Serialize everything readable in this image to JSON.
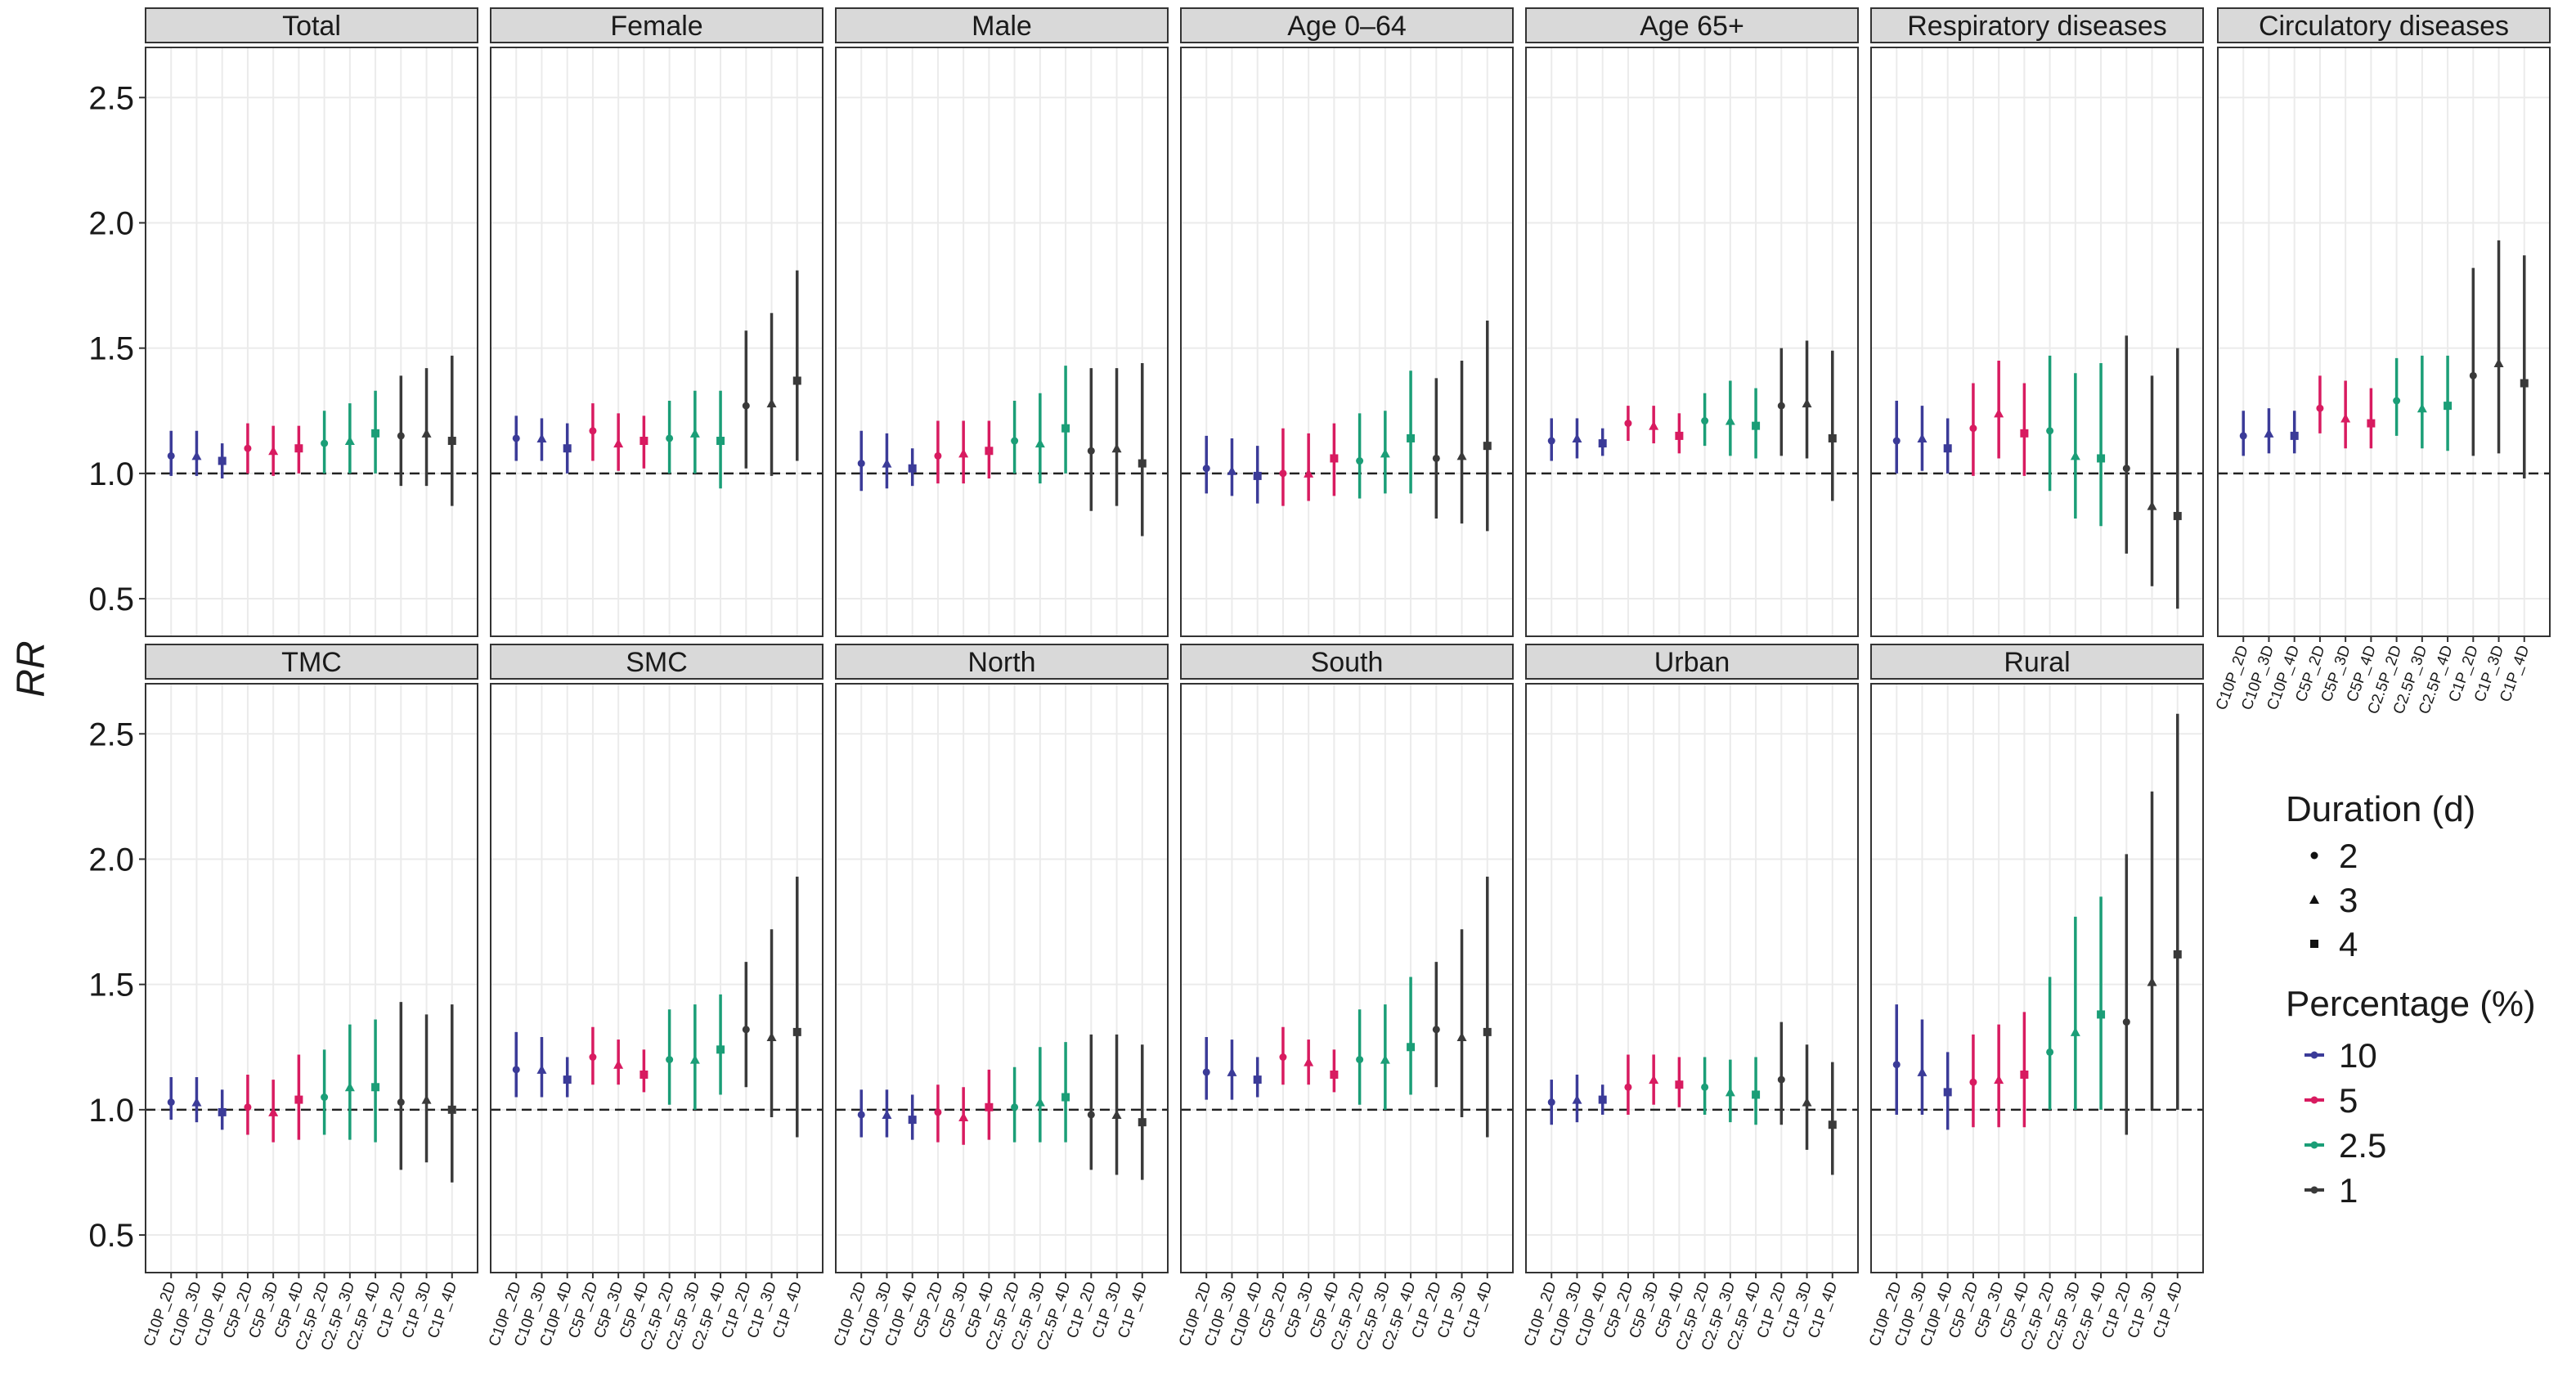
{
  "chart_data": {
    "type": "scatter",
    "variant": "faceted point-range (estimate with 95% CI)",
    "ylabel": "RR",
    "ylim": [
      0.35,
      2.7
    ],
    "yticks": [
      0.5,
      1.0,
      1.5,
      2.0,
      2.5
    ],
    "ytick_labels": [
      "0.5",
      "1.0",
      "1.5",
      "2.0",
      "2.5"
    ],
    "reference_line": {
      "y": 1.0,
      "style": "dashed"
    },
    "grid": true,
    "legend_position": "right",
    "categories": [
      "C10P_2D",
      "C10P_3D",
      "C10P_4D",
      "C5P_2D",
      "C5P_3D",
      "C5P_4D",
      "C2.5P_2D",
      "C2.5P_3D",
      "C2.5P_4D",
      "C1P_2D",
      "C1P_3D",
      "C1P_4D"
    ],
    "percentage_of_category": [
      "10",
      "10",
      "10",
      "5",
      "5",
      "5",
      "2.5",
      "2.5",
      "2.5",
      "1",
      "1",
      "1"
    ],
    "duration_of_category": [
      "2",
      "3",
      "4",
      "2",
      "3",
      "4",
      "2",
      "3",
      "4",
      "2",
      "3",
      "4"
    ],
    "legend": {
      "duration": {
        "title": "Duration (d)",
        "items": [
          {
            "label": "2",
            "shape": "circle"
          },
          {
            "label": "3",
            "shape": "triangle"
          },
          {
            "label": "4",
            "shape": "square"
          }
        ]
      },
      "percentage": {
        "title": "Percentage (%)",
        "items": [
          {
            "label": "10",
            "color": "#3b3b98"
          },
          {
            "label": "5",
            "color": "#d81b60"
          },
          {
            "label": "2.5",
            "color": "#1b9e77"
          },
          {
            "label": "1",
            "color": "#3a3a3a"
          }
        ]
      }
    },
    "panels": [
      {
        "title": "Total",
        "rr": [
          1.07,
          1.07,
          1.05,
          1.1,
          1.09,
          1.1,
          1.12,
          1.13,
          1.16,
          1.15,
          1.16,
          1.13
        ],
        "lower": [
          0.99,
          0.99,
          0.98,
          1.0,
          0.99,
          1.0,
          1.0,
          1.0,
          1.0,
          0.95,
          0.95,
          0.87
        ],
        "upper": [
          1.17,
          1.17,
          1.12,
          1.2,
          1.19,
          1.19,
          1.25,
          1.28,
          1.33,
          1.39,
          1.42,
          1.47
        ]
      },
      {
        "title": "Female",
        "rr": [
          1.14,
          1.14,
          1.1,
          1.17,
          1.12,
          1.13,
          1.14,
          1.16,
          1.13,
          1.27,
          1.28,
          1.37
        ],
        "lower": [
          1.05,
          1.05,
          1.0,
          1.05,
          1.01,
          1.02,
          1.0,
          1.0,
          0.94,
          1.02,
          0.99,
          1.05
        ],
        "upper": [
          1.23,
          1.22,
          1.2,
          1.28,
          1.24,
          1.23,
          1.29,
          1.33,
          1.33,
          1.57,
          1.64,
          1.81
        ]
      },
      {
        "title": "Male",
        "rr": [
          1.04,
          1.04,
          1.02,
          1.07,
          1.08,
          1.09,
          1.13,
          1.12,
          1.18,
          1.09,
          1.1,
          1.04
        ],
        "lower": [
          0.93,
          0.94,
          0.95,
          0.96,
          0.96,
          0.98,
          1.0,
          0.96,
          1.0,
          0.85,
          0.87,
          0.75
        ],
        "upper": [
          1.17,
          1.16,
          1.1,
          1.21,
          1.21,
          1.21,
          1.29,
          1.32,
          1.43,
          1.42,
          1.42,
          1.44
        ]
      },
      {
        "title": "Age 0–64",
        "rr": [
          1.02,
          1.01,
          0.99,
          1.0,
          1.0,
          1.06,
          1.05,
          1.08,
          1.14,
          1.06,
          1.07,
          1.11
        ],
        "lower": [
          0.92,
          0.91,
          0.88,
          0.87,
          0.89,
          0.91,
          0.9,
          0.92,
          0.92,
          0.82,
          0.8,
          0.77
        ],
        "upper": [
          1.15,
          1.14,
          1.11,
          1.18,
          1.16,
          1.2,
          1.24,
          1.25,
          1.41,
          1.38,
          1.45,
          1.61
        ]
      },
      {
        "title": "Age 65+",
        "rr": [
          1.13,
          1.14,
          1.12,
          1.2,
          1.19,
          1.15,
          1.21,
          1.21,
          1.19,
          1.27,
          1.28,
          1.14
        ],
        "lower": [
          1.05,
          1.06,
          1.07,
          1.13,
          1.12,
          1.08,
          1.11,
          1.07,
          1.06,
          1.07,
          1.06,
          0.89
        ],
        "upper": [
          1.22,
          1.22,
          1.18,
          1.27,
          1.27,
          1.24,
          1.32,
          1.37,
          1.34,
          1.5,
          1.53,
          1.49
        ]
      },
      {
        "title": "Respiratory diseases",
        "rr": [
          1.13,
          1.14,
          1.1,
          1.18,
          1.24,
          1.16,
          1.17,
          1.07,
          1.06,
          1.02,
          0.87,
          0.83
        ],
        "lower": [
          1.0,
          1.01,
          1.0,
          0.99,
          1.06,
          0.99,
          0.93,
          0.82,
          0.79,
          0.68,
          0.55,
          0.46
        ],
        "upper": [
          1.29,
          1.27,
          1.22,
          1.36,
          1.45,
          1.36,
          1.47,
          1.4,
          1.44,
          1.55,
          1.39,
          1.5
        ]
      },
      {
        "title": "Circulatory diseases",
        "rr": [
          1.15,
          1.16,
          1.15,
          1.26,
          1.22,
          1.2,
          1.29,
          1.26,
          1.27,
          1.39,
          1.44,
          1.36
        ],
        "lower": [
          1.07,
          1.08,
          1.08,
          1.16,
          1.1,
          1.1,
          1.15,
          1.1,
          1.09,
          1.07,
          1.08,
          0.98
        ],
        "upper": [
          1.25,
          1.26,
          1.25,
          1.39,
          1.37,
          1.34,
          1.46,
          1.47,
          1.47,
          1.82,
          1.93,
          1.87
        ]
      },
      {
        "title": "TMC",
        "rr": [
          1.03,
          1.03,
          0.99,
          1.01,
          0.99,
          1.04,
          1.05,
          1.09,
          1.09,
          1.03,
          1.04,
          1.0
        ],
        "lower": [
          0.96,
          0.95,
          0.92,
          0.9,
          0.87,
          0.88,
          0.9,
          0.88,
          0.87,
          0.76,
          0.79,
          0.71
        ],
        "upper": [
          1.13,
          1.13,
          1.08,
          1.14,
          1.12,
          1.22,
          1.24,
          1.34,
          1.36,
          1.43,
          1.38,
          1.42
        ]
      },
      {
        "title": "SMC",
        "rr": [
          1.16,
          1.16,
          1.12,
          1.21,
          1.18,
          1.14,
          1.2,
          1.2,
          1.24,
          1.32,
          1.29,
          1.31
        ],
        "lower": [
          1.05,
          1.05,
          1.05,
          1.1,
          1.1,
          1.07,
          1.02,
          1.0,
          1.06,
          1.09,
          0.97,
          0.89
        ],
        "upper": [
          1.31,
          1.29,
          1.21,
          1.33,
          1.28,
          1.24,
          1.4,
          1.42,
          1.46,
          1.59,
          1.72,
          1.93
        ]
      },
      {
        "title": "North",
        "rr": [
          0.98,
          0.98,
          0.96,
          0.99,
          0.97,
          1.01,
          1.01,
          1.03,
          1.05,
          0.98,
          0.98,
          0.95
        ],
        "lower": [
          0.89,
          0.89,
          0.88,
          0.87,
          0.86,
          0.88,
          0.87,
          0.87,
          0.87,
          0.76,
          0.74,
          0.72
        ],
        "upper": [
          1.08,
          1.08,
          1.06,
          1.1,
          1.09,
          1.16,
          1.17,
          1.25,
          1.27,
          1.3,
          1.3,
          1.26
        ]
      },
      {
        "title": "South",
        "rr": [
          1.15,
          1.15,
          1.12,
          1.21,
          1.19,
          1.14,
          1.2,
          1.2,
          1.25,
          1.32,
          1.29,
          1.31
        ],
        "lower": [
          1.04,
          1.04,
          1.05,
          1.1,
          1.1,
          1.07,
          1.02,
          1.0,
          1.06,
          1.09,
          0.97,
          0.89
        ],
        "upper": [
          1.29,
          1.28,
          1.21,
          1.33,
          1.28,
          1.24,
          1.4,
          1.42,
          1.53,
          1.59,
          1.72,
          1.93
        ]
      },
      {
        "title": "Urban",
        "rr": [
          1.03,
          1.04,
          1.04,
          1.09,
          1.12,
          1.1,
          1.09,
          1.07,
          1.06,
          1.12,
          1.03,
          0.94
        ],
        "lower": [
          0.94,
          0.95,
          0.98,
          0.98,
          1.02,
          1.01,
          0.98,
          0.95,
          0.94,
          0.94,
          0.84,
          0.74
        ],
        "upper": [
          1.12,
          1.14,
          1.1,
          1.22,
          1.22,
          1.21,
          1.21,
          1.2,
          1.21,
          1.35,
          1.26,
          1.19
        ]
      },
      {
        "title": "Rural",
        "rr": [
          1.18,
          1.15,
          1.07,
          1.11,
          1.12,
          1.14,
          1.23,
          1.31,
          1.38,
          1.35,
          1.51,
          1.62
        ],
        "lower": [
          0.98,
          0.98,
          0.92,
          0.93,
          0.93,
          0.93,
          1.0,
          1.0,
          1.0,
          0.9,
          1.0,
          1.0
        ],
        "upper": [
          1.42,
          1.36,
          1.23,
          1.3,
          1.34,
          1.39,
          1.53,
          1.77,
          1.85,
          2.02,
          2.27,
          2.58
        ]
      }
    ]
  }
}
